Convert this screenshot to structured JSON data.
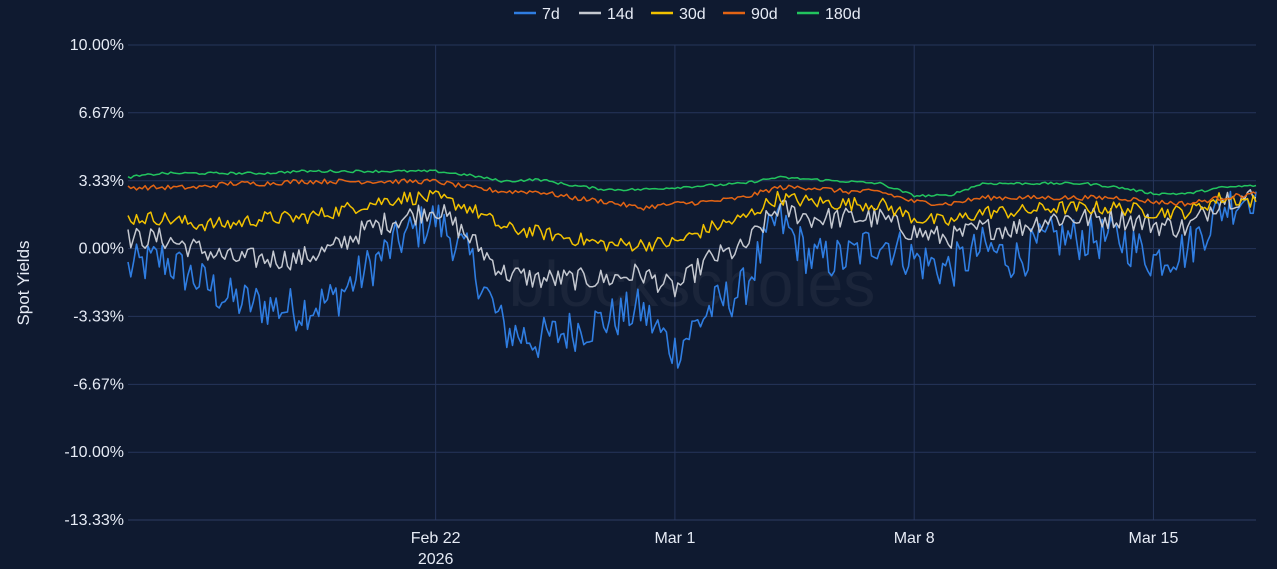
{
  "chart_data": {
    "type": "line",
    "ylabel": "Spot Yields",
    "watermark": "blockscholes",
    "ylim": [
      -13.33,
      10.0
    ],
    "y_ticks": [
      10.0,
      6.67,
      3.33,
      0.0,
      -3.33,
      -6.67,
      -10.0,
      -13.33
    ],
    "y_tick_labels": [
      "10.00%",
      "6.67%",
      "3.33%",
      "0.00%",
      "-3.33%",
      "-6.67%",
      "-10.00%",
      "-13.33%"
    ],
    "x_range": [
      "2026-02-13",
      "2026-03-18"
    ],
    "x_ticks": [
      {
        "date": "2026-02-22",
        "label": "Feb 22",
        "sublabel": "2026"
      },
      {
        "date": "2026-03-01",
        "label": "Mar 1",
        "sublabel": ""
      },
      {
        "date": "2026-03-08",
        "label": "Mar 8",
        "sublabel": ""
      },
      {
        "date": "2026-03-15",
        "label": "Mar 15",
        "sublabel": ""
      }
    ],
    "grid": true,
    "legend_position": "top-center",
    "series": [
      {
        "name": "7d",
        "color": "#2f7de1",
        "width": 1.6,
        "x": [
          "2026-02-13",
          "2026-02-14",
          "2026-02-15",
          "2026-02-16",
          "2026-02-17",
          "2026-02-18",
          "2026-02-19",
          "2026-02-20",
          "2026-02-21",
          "2026-02-22",
          "2026-02-23",
          "2026-02-24",
          "2026-02-25",
          "2026-02-26",
          "2026-02-27",
          "2026-02-28",
          "2026-03-01",
          "2026-03-02",
          "2026-03-03",
          "2026-03-04",
          "2026-03-05",
          "2026-03-06",
          "2026-03-07",
          "2026-03-08",
          "2026-03-09",
          "2026-03-10",
          "2026-03-11",
          "2026-03-12",
          "2026-03-13",
          "2026-03-14",
          "2026-03-15",
          "2026-03-16",
          "2026-03-17",
          "2026-03-18"
        ],
        "values": [
          -1.0,
          -0.5,
          -1.5,
          -2.5,
          -2.8,
          -3.0,
          -2.5,
          -1.0,
          0.5,
          1.5,
          -0.5,
          -4.0,
          -4.5,
          -4.0,
          -3.5,
          -3.0,
          -5.0,
          -3.0,
          -2.0,
          1.5,
          -0.5,
          -0.5,
          0.5,
          -0.5,
          -1.0,
          0.0,
          -0.5,
          0.5,
          0.5,
          0.5,
          -0.5,
          0.0,
          2.0,
          2.8
        ]
      },
      {
        "name": "14d",
        "color": "#c4c8d0",
        "width": 1.5,
        "x": [
          "2026-02-13",
          "2026-02-14",
          "2026-02-15",
          "2026-02-16",
          "2026-02-17",
          "2026-02-18",
          "2026-02-19",
          "2026-02-20",
          "2026-02-21",
          "2026-02-22",
          "2026-02-23",
          "2026-02-24",
          "2026-02-25",
          "2026-02-26",
          "2026-02-27",
          "2026-02-28",
          "2026-03-01",
          "2026-03-02",
          "2026-03-03",
          "2026-03-04",
          "2026-03-05",
          "2026-03-06",
          "2026-03-07",
          "2026-03-08",
          "2026-03-09",
          "2026-03-10",
          "2026-03-11",
          "2026-03-12",
          "2026-03-13",
          "2026-03-14",
          "2026-03-15",
          "2026-03-16",
          "2026-03-17",
          "2026-03-18"
        ],
        "values": [
          0.5,
          0.5,
          0.0,
          -0.5,
          -0.5,
          -0.5,
          0.0,
          1.0,
          1.5,
          2.0,
          0.5,
          -1.2,
          -1.5,
          -1.5,
          -1.5,
          -1.2,
          -2.0,
          -0.5,
          0.0,
          2.0,
          1.5,
          1.5,
          1.5,
          0.8,
          0.5,
          1.0,
          1.0,
          1.5,
          1.5,
          1.5,
          1.2,
          1.0,
          2.5,
          2.5
        ]
      },
      {
        "name": "30d",
        "color": "#f2c200",
        "width": 1.5,
        "x": [
          "2026-02-13",
          "2026-02-14",
          "2026-02-15",
          "2026-02-16",
          "2026-02-17",
          "2026-02-18",
          "2026-02-19",
          "2026-02-20",
          "2026-02-21",
          "2026-02-22",
          "2026-02-23",
          "2026-02-24",
          "2026-02-25",
          "2026-02-26",
          "2026-02-27",
          "2026-02-28",
          "2026-03-01",
          "2026-03-02",
          "2026-03-03",
          "2026-03-04",
          "2026-03-05",
          "2026-03-06",
          "2026-03-07",
          "2026-03-08",
          "2026-03-09",
          "2026-03-10",
          "2026-03-11",
          "2026-03-12",
          "2026-03-13",
          "2026-03-14",
          "2026-03-15",
          "2026-03-16",
          "2026-03-17",
          "2026-03-18"
        ],
        "values": [
          1.5,
          1.5,
          1.2,
          1.2,
          1.5,
          1.5,
          1.8,
          2.2,
          2.5,
          2.5,
          2.0,
          1.0,
          0.8,
          0.5,
          0.2,
          0.2,
          0.3,
          1.0,
          1.5,
          2.5,
          2.3,
          2.2,
          2.2,
          1.5,
          1.3,
          1.8,
          1.8,
          2.0,
          2.0,
          2.0,
          1.8,
          1.8,
          2.5,
          2.3
        ]
      },
      {
        "name": "90d",
        "color": "#e36414",
        "width": 1.5,
        "x": [
          "2026-02-13",
          "2026-02-14",
          "2026-02-15",
          "2026-02-16",
          "2026-02-17",
          "2026-02-18",
          "2026-02-19",
          "2026-02-20",
          "2026-02-21",
          "2026-02-22",
          "2026-02-23",
          "2026-02-24",
          "2026-02-25",
          "2026-02-26",
          "2026-02-27",
          "2026-02-28",
          "2026-03-01",
          "2026-03-02",
          "2026-03-03",
          "2026-03-04",
          "2026-03-05",
          "2026-03-06",
          "2026-03-07",
          "2026-03-08",
          "2026-03-09",
          "2026-03-10",
          "2026-03-11",
          "2026-03-12",
          "2026-03-13",
          "2026-03-14",
          "2026-03-15",
          "2026-03-16",
          "2026-03-17",
          "2026-03-18"
        ],
        "values": [
          3.0,
          3.0,
          3.0,
          3.2,
          3.2,
          3.3,
          3.3,
          3.3,
          3.3,
          3.3,
          3.0,
          2.8,
          2.8,
          2.5,
          2.3,
          2.0,
          2.2,
          2.3,
          2.5,
          3.0,
          3.0,
          2.8,
          2.8,
          2.3,
          2.2,
          2.5,
          2.5,
          2.5,
          2.5,
          2.5,
          2.3,
          2.2,
          2.5,
          2.7
        ]
      },
      {
        "name": "180d",
        "color": "#22c45e",
        "width": 1.5,
        "x": [
          "2026-02-13",
          "2026-02-14",
          "2026-02-15",
          "2026-02-16",
          "2026-02-17",
          "2026-02-18",
          "2026-02-19",
          "2026-02-20",
          "2026-02-21",
          "2026-02-22",
          "2026-02-23",
          "2026-02-24",
          "2026-02-25",
          "2026-02-26",
          "2026-02-27",
          "2026-02-28",
          "2026-03-01",
          "2026-03-02",
          "2026-03-03",
          "2026-03-04",
          "2026-03-05",
          "2026-03-06",
          "2026-03-07",
          "2026-03-08",
          "2026-03-09",
          "2026-03-10",
          "2026-03-11",
          "2026-03-12",
          "2026-03-13",
          "2026-03-14",
          "2026-03-15",
          "2026-03-16",
          "2026-03-17",
          "2026-03-18"
        ],
        "values": [
          3.5,
          3.7,
          3.7,
          3.7,
          3.7,
          3.8,
          3.8,
          3.8,
          3.8,
          3.8,
          3.6,
          3.3,
          3.4,
          3.1,
          2.9,
          2.9,
          3.0,
          3.1,
          3.2,
          3.5,
          3.4,
          3.3,
          3.2,
          2.6,
          2.6,
          3.2,
          3.2,
          3.2,
          3.2,
          3.0,
          2.7,
          2.7,
          3.0,
          3.1
        ]
      }
    ]
  }
}
